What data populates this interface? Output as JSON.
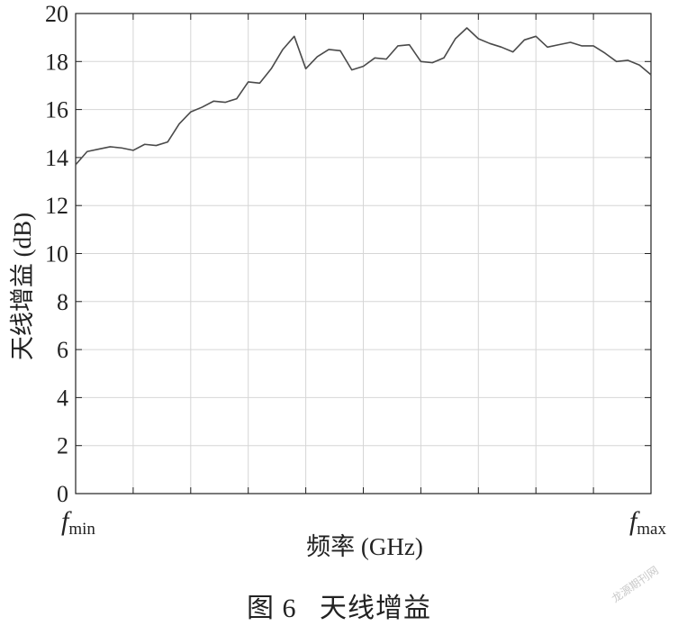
{
  "chart_data": {
    "type": "line",
    "title": "",
    "xlabel": "频率 (GHz)",
    "ylabel": "天线增益 (dB)",
    "ylim": [
      0,
      20
    ],
    "yticks": [
      0,
      2,
      4,
      6,
      8,
      10,
      12,
      14,
      16,
      18,
      20
    ],
    "x_tick_labels": {
      "min": {
        "base": "f",
        "sub": "min"
      },
      "max": {
        "base": "f",
        "sub": "max"
      }
    },
    "grid": true,
    "series": [
      {
        "values": [
          13.7,
          14.25,
          14.35,
          14.45,
          14.4,
          14.3,
          14.55,
          14.5,
          14.65,
          15.4,
          15.9,
          16.1,
          16.35,
          16.3,
          16.45,
          17.15,
          17.1,
          17.7,
          18.5,
          19.05,
          17.7,
          18.2,
          18.5,
          18.45,
          17.65,
          17.8,
          18.15,
          18.1,
          18.65,
          18.7,
          18.0,
          17.95,
          18.15,
          18.95,
          19.4,
          18.95,
          18.75,
          18.6,
          18.4,
          18.9,
          19.05,
          18.6,
          18.7,
          18.8,
          18.65,
          18.65,
          18.35,
          18.0,
          18.05,
          17.85,
          17.45
        ]
      }
    ]
  },
  "caption": "图 6   天线增益",
  "watermark": "龙源期刊网",
  "colors": {
    "line": "#4a4a4a",
    "grid": "#d6d6d6",
    "axis": "#222222"
  }
}
